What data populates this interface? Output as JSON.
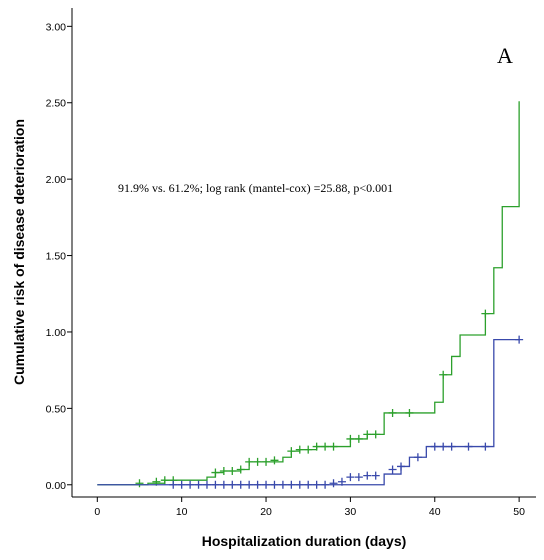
{
  "chart_data": {
    "type": "line",
    "panel_label": "A",
    "xlabel": "Hospitalization duration (days)",
    "ylabel": "Cumulative risk of disease deterioration",
    "annotation": "91.9% vs. 61.2%; log rank (mantel-cox) =25.88, p<0.001",
    "xlim": [
      -3,
      52
    ],
    "ylim": [
      -0.08,
      3.12
    ],
    "x_ticks": [
      0,
      10,
      20,
      30,
      40,
      50
    ],
    "y_ticks": [
      0,
      0.5,
      1.0,
      1.5,
      2.0,
      2.5,
      3.0
    ],
    "y_tick_labels": [
      "0.00",
      "0.50",
      "1.00",
      "1.50",
      "2.00",
      "2.50",
      "3.00"
    ],
    "grid": false,
    "series": [
      {
        "color": "#2ca02c",
        "steps": [
          [
            0,
            0
          ],
          [
            6,
            0.01
          ],
          [
            8,
            0.03
          ],
          [
            13,
            0.05
          ],
          [
            14,
            0.08
          ],
          [
            15,
            0.09
          ],
          [
            17,
            0.1
          ],
          [
            18,
            0.15
          ],
          [
            22,
            0.18
          ],
          [
            23,
            0.22
          ],
          [
            24,
            0.23
          ],
          [
            26,
            0.25
          ],
          [
            30,
            0.3
          ],
          [
            32,
            0.33
          ],
          [
            34,
            0.47
          ],
          [
            39,
            0.47
          ],
          [
            40,
            0.54
          ],
          [
            41,
            0.72
          ],
          [
            42,
            0.84
          ],
          [
            43,
            0.98
          ],
          [
            46,
            1.12
          ],
          [
            47,
            1.42
          ],
          [
            48,
            1.82
          ],
          [
            50,
            2.51
          ]
        ],
        "censored": [
          [
            5,
            0.01
          ],
          [
            7,
            0.02
          ],
          [
            8,
            0.03
          ],
          [
            9,
            0.03
          ],
          [
            14,
            0.08
          ],
          [
            15,
            0.09
          ],
          [
            16,
            0.09
          ],
          [
            17,
            0.1
          ],
          [
            18,
            0.15
          ],
          [
            19,
            0.15
          ],
          [
            20,
            0.15
          ],
          [
            21,
            0.16
          ],
          [
            23,
            0.22
          ],
          [
            24,
            0.23
          ],
          [
            25,
            0.23
          ],
          [
            26,
            0.25
          ],
          [
            27,
            0.25
          ],
          [
            28,
            0.25
          ],
          [
            30,
            0.3
          ],
          [
            31,
            0.3
          ],
          [
            32,
            0.33
          ],
          [
            33,
            0.33
          ],
          [
            35,
            0.47
          ],
          [
            37,
            0.47
          ],
          [
            41,
            0.72
          ],
          [
            46,
            1.12
          ]
        ]
      },
      {
        "color": "#3949ab",
        "steps": [
          [
            0,
            0
          ],
          [
            34,
            0.07
          ],
          [
            36,
            0.12
          ],
          [
            37,
            0.18
          ],
          [
            39,
            0.25
          ],
          [
            47,
            0.95
          ],
          [
            50,
            0.95
          ]
        ],
        "censored": [
          [
            9,
            0
          ],
          [
            10,
            0
          ],
          [
            11,
            0
          ],
          [
            12,
            0
          ],
          [
            13,
            0
          ],
          [
            14,
            0
          ],
          [
            15,
            0
          ],
          [
            16,
            0
          ],
          [
            17,
            0
          ],
          [
            18,
            0
          ],
          [
            19,
            0
          ],
          [
            20,
            0
          ],
          [
            21,
            0
          ],
          [
            22,
            0
          ],
          [
            23,
            0
          ],
          [
            24,
            0
          ],
          [
            25,
            0
          ],
          [
            26,
            0
          ],
          [
            27,
            0
          ],
          [
            28,
            0.01
          ],
          [
            29,
            0.02
          ],
          [
            30,
            0.05
          ],
          [
            31,
            0.05
          ],
          [
            32,
            0.06
          ],
          [
            33,
            0.06
          ],
          [
            35,
            0.1
          ],
          [
            36,
            0.12
          ],
          [
            38,
            0.18
          ],
          [
            40,
            0.25
          ],
          [
            41,
            0.25
          ],
          [
            42,
            0.25
          ],
          [
            44,
            0.25
          ],
          [
            46,
            0.25
          ],
          [
            50,
            0.95
          ]
        ]
      }
    ]
  }
}
